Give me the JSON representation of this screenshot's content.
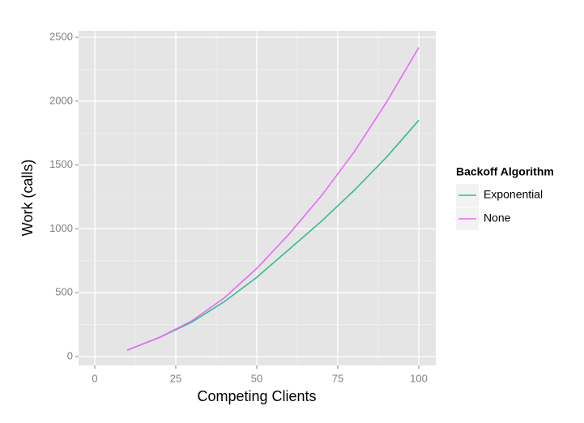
{
  "chart_data": {
    "type": "line",
    "x_label": "Competing Clients",
    "y_label": "Work (calls)",
    "x": [
      10,
      20,
      30,
      40,
      50,
      60,
      70,
      80,
      90,
      100
    ],
    "series": [
      {
        "name": "Exponential",
        "color": "#2fbf8c",
        "values": [
          50,
          150,
          270,
          430,
          620,
          840,
          1060,
          1300,
          1560,
          1850
        ]
      },
      {
        "name": "None",
        "color": "#e76bf3",
        "values": [
          50,
          150,
          280,
          460,
          690,
          960,
          1260,
          1600,
          1990,
          2420
        ]
      }
    ],
    "xlim": [
      -5,
      105.25
    ],
    "xticks": [
      0,
      25,
      50,
      75,
      100
    ],
    "ylim": [
      -70,
      2551
    ],
    "yticks": [
      0,
      500,
      1000,
      1500,
      2000,
      2500
    ],
    "x_minor_ticks": [
      12.5,
      37.5,
      62.5,
      87.5
    ],
    "y_minor_ticks": [
      250,
      750,
      1250,
      1750,
      2250
    ],
    "grid": true,
    "legend_title": "Backoff Algorithm",
    "legend_position": "right"
  }
}
